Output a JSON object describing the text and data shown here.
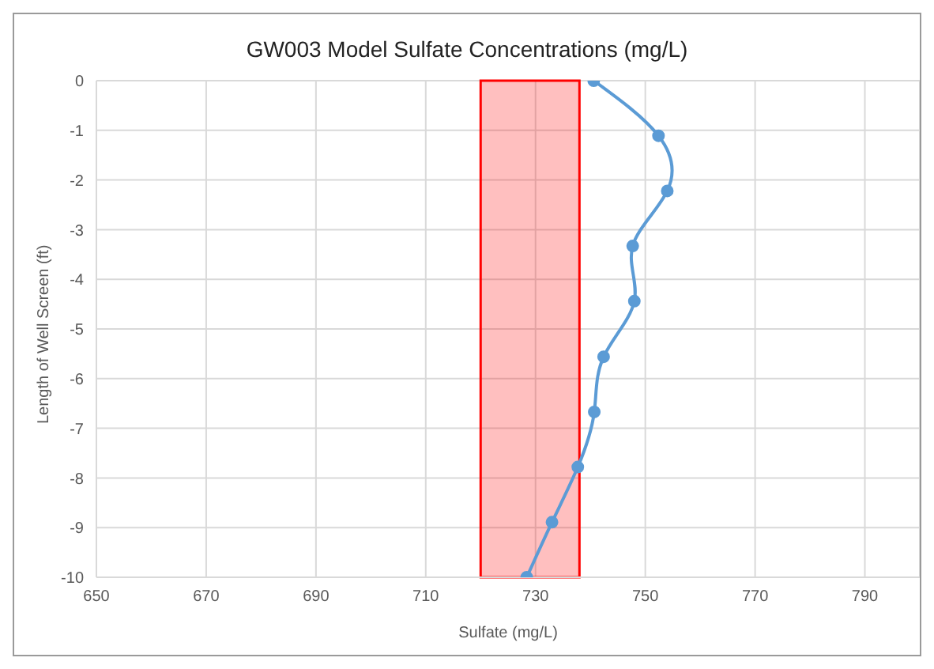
{
  "chart_data": {
    "type": "line",
    "title": "GW003 Model Sulfate Concentrations (mg/L)",
    "xlabel": "Sulfate (mg/L)",
    "ylabel": "Length of Well Screen (ft)",
    "series": [
      {
        "color": "#5b9bd5",
        "x": [
          740.6,
          752.4,
          754,
          747.7,
          748,
          742.4,
          740.7,
          737.7,
          733,
          728.4
        ],
        "values": [
          0,
          -1.11,
          -2.22,
          -3.33,
          -4.44,
          -5.56,
          -6.67,
          -7.78,
          -8.89,
          -10
        ]
      }
    ],
    "bands": [
      {
        "axis": "x",
        "from": 720,
        "to": 738,
        "color": "#ff0000"
      }
    ],
    "xlim": [
      650,
      800
    ],
    "xticks": [
      650,
      670,
      690,
      710,
      730,
      750,
      770,
      790
    ],
    "ylim": [
      -10,
      0
    ],
    "yticks": [
      0,
      -1,
      -2,
      -3,
      -4,
      -5,
      -6,
      -7,
      -8,
      -9,
      -10
    ],
    "grid": true,
    "legend": false,
    "marker": "circle",
    "line_style": "solid"
  }
}
